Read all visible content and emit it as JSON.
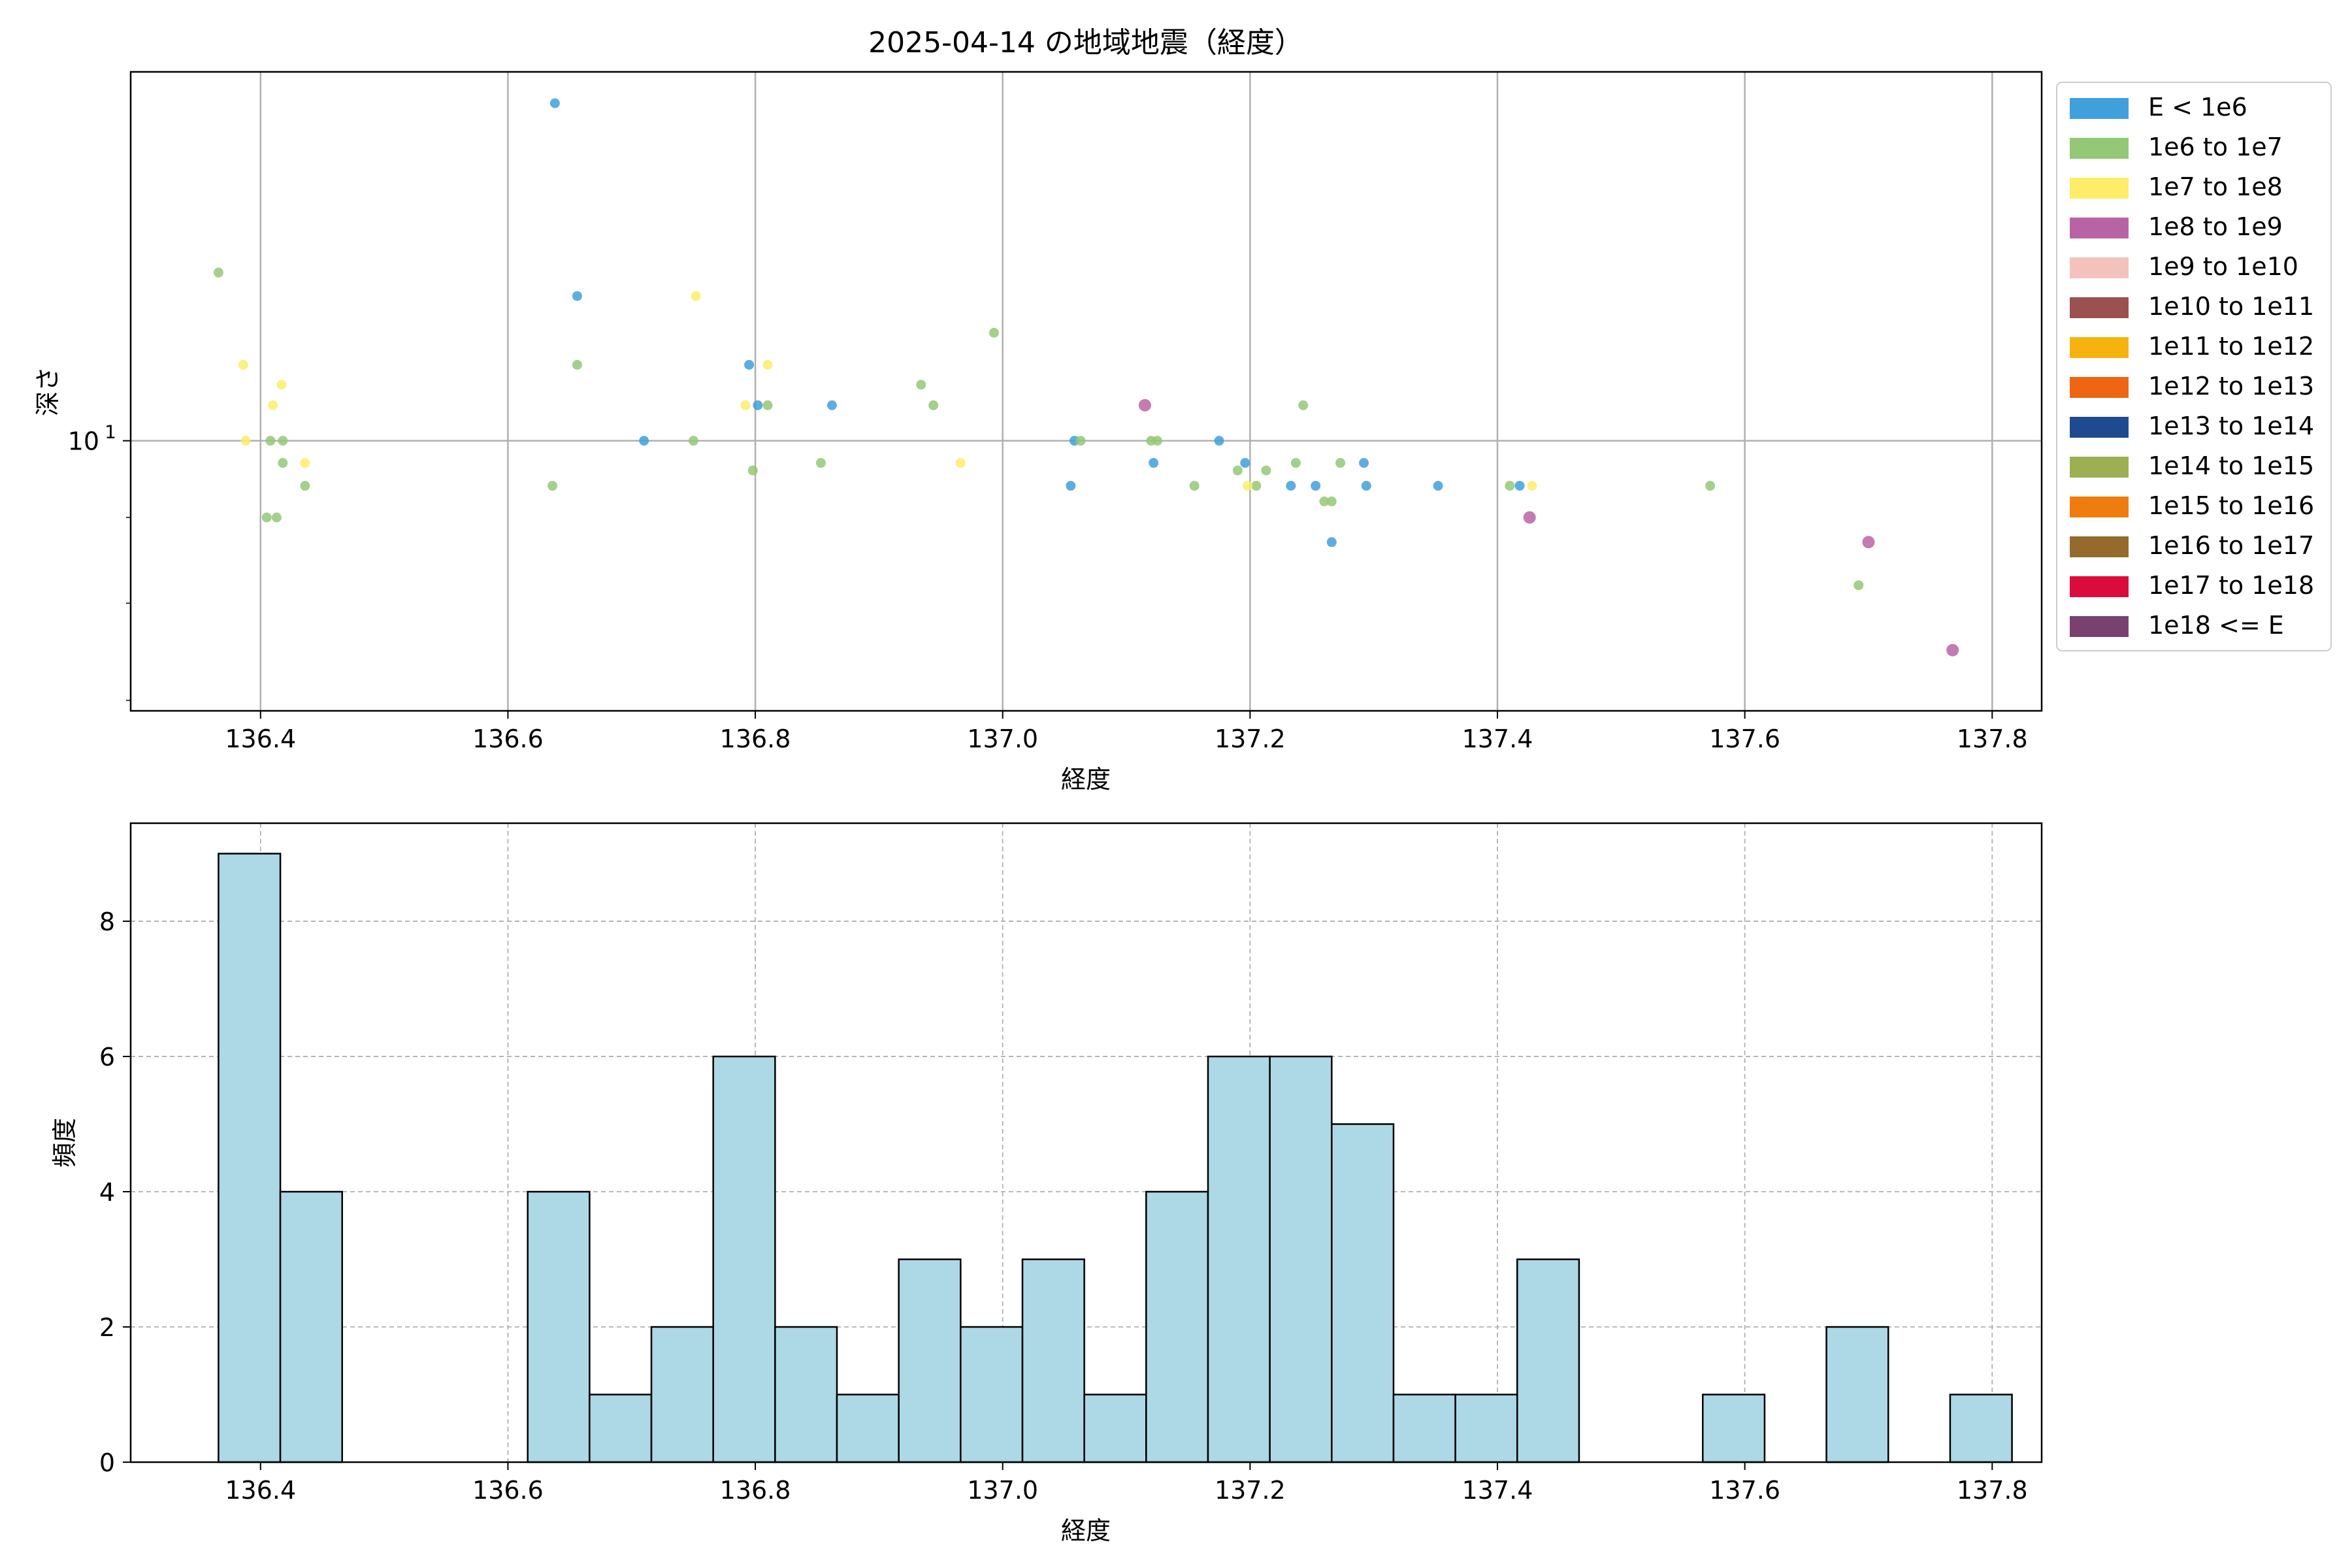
{
  "chart_data": [
    {
      "type": "scatter",
      "title": "2025-04-14 の地域地震（経度）",
      "xlabel": "経度",
      "ylabel": "深さ",
      "xlim": [
        136.295,
        137.84
      ],
      "ylim": [
        6.9,
        16.6
      ],
      "yscale": "log",
      "x_ticks": [
        "136.4",
        "136.6",
        "136.8",
        "137.0",
        "137.2",
        "137.4",
        "137.6",
        "137.8"
      ],
      "x_tick_values": [
        136.4,
        136.6,
        136.8,
        137.0,
        137.2,
        137.4,
        137.6,
        137.8
      ],
      "y_tick_labels": [
        {
          "base": "10",
          "exp": "1"
        }
      ],
      "y_tick_values": [
        10
      ],
      "y_minor_ticks": [
        7,
        8,
        9,
        20
      ],
      "grid": true,
      "legend_position": "outside-right",
      "legend": [
        {
          "label": "E < 1e6",
          "color": "#3fa0dc"
        },
        {
          "label": "1e6 to 1e7",
          "color": "#93c876"
        },
        {
          "label": "1e7 to 1e8",
          "color": "#fded69"
        },
        {
          "label": "1e8 to 1e9",
          "color": "#b864a4"
        },
        {
          "label": "1e9 to 1e10",
          "color": "#f4c2bc"
        },
        {
          "label": "1e10 to 1e11",
          "color": "#9a5150"
        },
        {
          "label": "1e11 to 1e12",
          "color": "#f6b30d"
        },
        {
          "label": "1e12 to 1e13",
          "color": "#ee6512"
        },
        {
          "label": "1e13 to 1e14",
          "color": "#1e4b8f"
        },
        {
          "label": "1e14 to 1e15",
          "color": "#9caf52"
        },
        {
          "label": "1e15 to 1e16",
          "color": "#ee7d0d"
        },
        {
          "label": "1e16 to 1e17",
          "color": "#946a2d"
        },
        {
          "label": "1e17 to 1e18",
          "color": "#dc0b3e"
        },
        {
          "label": "1e18 <= E",
          "color": "#7a4170"
        }
      ],
      "series": [
        {
          "category": 0,
          "points": [
            [
              136.638,
              15.9
            ],
            [
              136.656,
              12.2
            ],
            [
              136.71,
              10.0
            ],
            [
              136.795,
              11.1
            ],
            [
              136.802,
              10.5
            ],
            [
              136.862,
              10.5
            ],
            [
              137.055,
              9.4
            ],
            [
              137.058,
              10.0
            ],
            [
              137.122,
              9.7
            ],
            [
              137.175,
              10.0
            ],
            [
              137.196,
              9.7
            ],
            [
              137.233,
              9.4
            ],
            [
              137.253,
              9.4
            ],
            [
              137.266,
              8.7
            ],
            [
              137.292,
              9.7
            ],
            [
              137.294,
              9.4
            ],
            [
              137.352,
              9.4
            ],
            [
              137.418,
              9.4
            ]
          ]
        },
        {
          "category": 1,
          "points": [
            [
              136.366,
              12.6
            ],
            [
              136.408,
              10.0
            ],
            [
              136.405,
              9.0
            ],
            [
              136.413,
              9.0
            ],
            [
              136.418,
              10.0
            ],
            [
              136.418,
              9.7
            ],
            [
              136.436,
              9.4
            ],
            [
              136.636,
              9.4
            ],
            [
              136.656,
              11.1
            ],
            [
              136.75,
              10.0
            ],
            [
              136.798,
              9.6
            ],
            [
              136.81,
              10.5
            ],
            [
              136.853,
              9.7
            ],
            [
              136.934,
              10.8
            ],
            [
              136.944,
              10.5
            ],
            [
              136.993,
              11.6
            ],
            [
              137.063,
              10.0
            ],
            [
              137.12,
              10.0
            ],
            [
              137.125,
              10.0
            ],
            [
              137.155,
              9.4
            ],
            [
              137.19,
              9.6
            ],
            [
              137.205,
              9.4
            ],
            [
              137.213,
              9.6
            ],
            [
              137.237,
              9.7
            ],
            [
              137.243,
              10.5
            ],
            [
              137.26,
              9.2
            ],
            [
              137.266,
              9.2
            ],
            [
              137.273,
              9.7
            ],
            [
              137.41,
              9.4
            ],
            [
              137.572,
              9.4
            ],
            [
              137.692,
              8.2
            ]
          ]
        },
        {
          "category": 2,
          "points": [
            [
              136.386,
              11.1
            ],
            [
              136.388,
              10.0
            ],
            [
              136.41,
              10.5
            ],
            [
              136.417,
              10.8
            ],
            [
              136.436,
              9.7
            ],
            [
              136.752,
              12.2
            ],
            [
              136.792,
              10.5
            ],
            [
              136.81,
              11.1
            ],
            [
              136.966,
              9.7
            ],
            [
              137.198,
              9.4
            ],
            [
              137.428,
              9.4
            ]
          ]
        },
        {
          "category": 3,
          "points": [
            [
              137.115,
              10.5
            ],
            [
              137.426,
              9.0
            ],
            [
              137.7,
              8.7
            ],
            [
              137.768,
              7.5
            ]
          ]
        }
      ]
    },
    {
      "type": "bar",
      "title": "",
      "xlabel": "経度",
      "ylabel": "頻度",
      "xlim": [
        136.295,
        137.84
      ],
      "ylim": [
        0,
        9.45
      ],
      "x_ticks": [
        "136.4",
        "136.6",
        "136.8",
        "137.0",
        "137.2",
        "137.4",
        "137.6",
        "137.8"
      ],
      "x_tick_values": [
        136.4,
        136.6,
        136.8,
        137.0,
        137.2,
        137.4,
        137.6,
        137.8
      ],
      "y_ticks": [
        "0",
        "2",
        "4",
        "6",
        "8"
      ],
      "y_tick_values": [
        0,
        2,
        4,
        6,
        8
      ],
      "grid": true,
      "bar_color": "#add8e6",
      "bin_start": 136.366,
      "bin_width": 0.05,
      "values": [
        9,
        4,
        0,
        0,
        0,
        4,
        1,
        2,
        6,
        2,
        1,
        3,
        2,
        3,
        1,
        4,
        6,
        6,
        5,
        1,
        1,
        3,
        0,
        0,
        1,
        0,
        2,
        0,
        1
      ]
    }
  ]
}
